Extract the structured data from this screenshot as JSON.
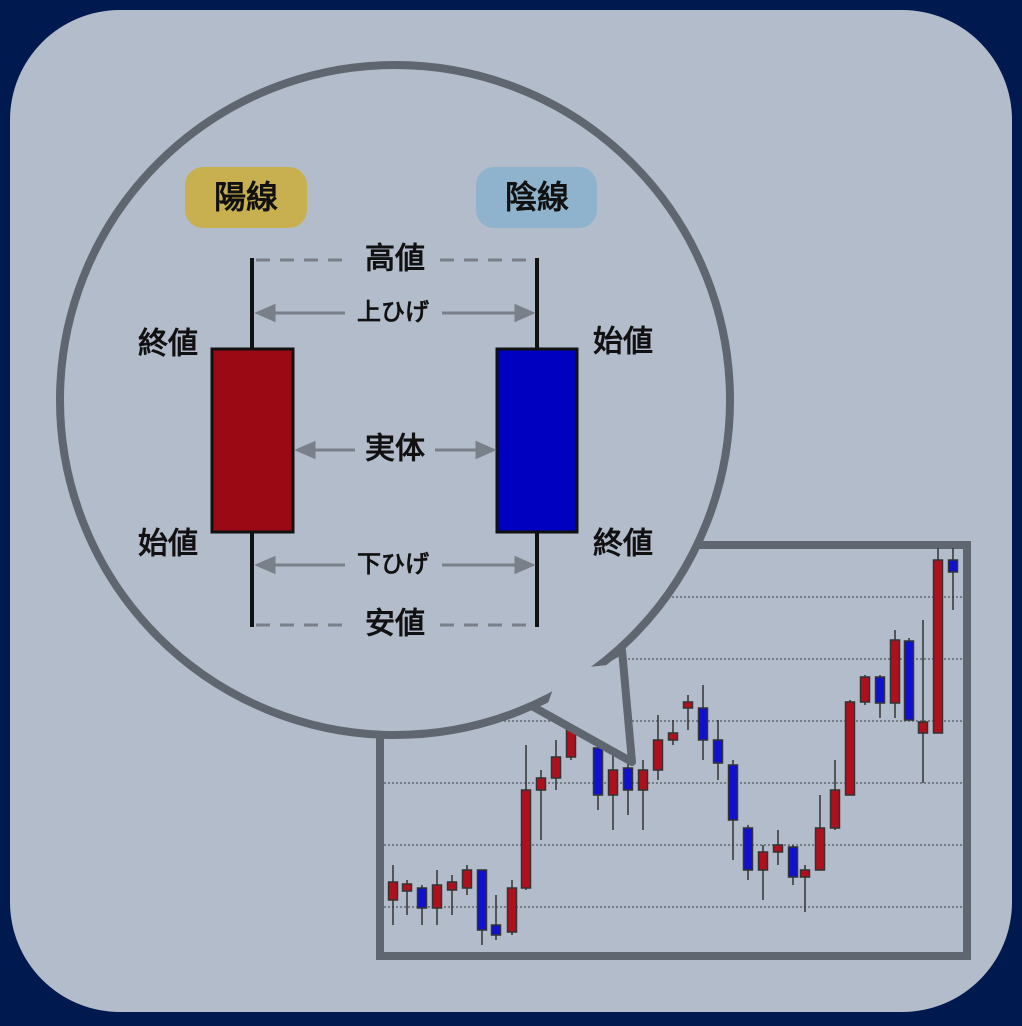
{
  "badges": {
    "bullish": "陽線",
    "bearish": "陰線"
  },
  "labels": {
    "high": "高値",
    "upper_shadow": "上ひげ",
    "body": "実体",
    "lower_shadow": "下ひげ",
    "low": "安値",
    "bullish_close": "終値",
    "bullish_open": "始値",
    "bearish_open": "始値",
    "bearish_close": "終値"
  }
}
